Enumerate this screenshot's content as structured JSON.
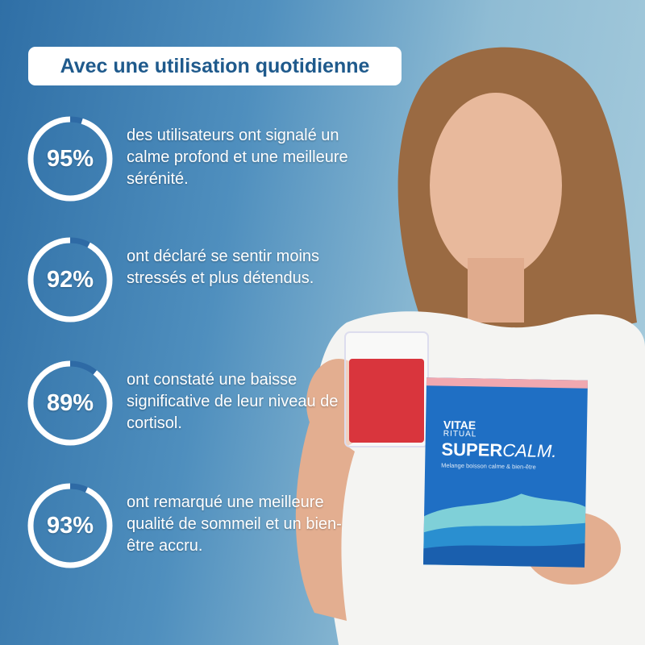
{
  "header": {
    "title": "Avec une utilisation quotidienne"
  },
  "stats": [
    {
      "value": "95%",
      "percent": 95,
      "text": "des utilisateurs ont signalé un calme profond et une meilleure sérénité."
    },
    {
      "value": "92%",
      "percent": 92,
      "text": "ont déclaré se sentir moins stressés et plus détendus."
    },
    {
      "value": "89%",
      "percent": 89,
      "text": "ont constaté une baisse significative de leur niveau de cortisol."
    },
    {
      "value": "93%",
      "percent": 93,
      "text": "ont remarqué une meilleure qualité de sommeil et un bien-être accru."
    }
  ],
  "product": {
    "brand": "VITAE",
    "sub_brand": "RITUAL",
    "name_bold": "SUPER",
    "name_light": "CALM.",
    "tagline": "Melange boisson calme & bien-être"
  },
  "colors": {
    "title_text": "#1f5a8c",
    "ring": "#ffffff",
    "ring_gap": "#2e6aa5",
    "pouch": "#1f6fc4"
  }
}
